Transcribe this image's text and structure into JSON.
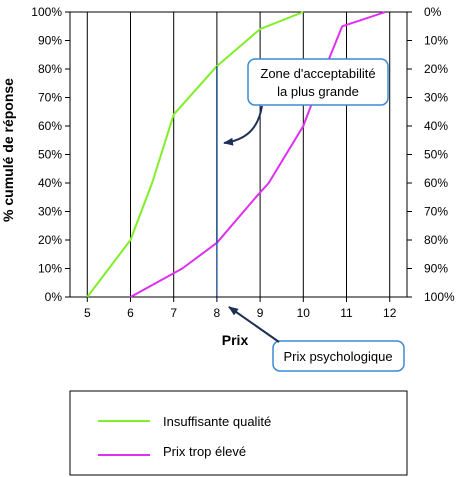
{
  "chart_data": {
    "type": "line",
    "xlabel": "Prix",
    "ylabel": "% cumulé de réponse",
    "x_ticks": [
      "5",
      "6",
      "7",
      "8",
      "9",
      "10",
      "11",
      "12"
    ],
    "xlim": [
      4.6,
      12.4
    ],
    "ylim": [
      0,
      100
    ],
    "y_ticks_left": [
      "0%",
      "10%",
      "20%",
      "30%",
      "40%",
      "50%",
      "60%",
      "70%",
      "80%",
      "90%",
      "100%"
    ],
    "y_ticks_right": [
      "100%",
      "90%",
      "80%",
      "70%",
      "60%",
      "50%",
      "40%",
      "30%",
      "20%",
      "10%",
      "0%"
    ],
    "grid": "vertical",
    "series": [
      {
        "name": "Insuffisante qualité",
        "color": "#80ee28",
        "points": [
          [
            5.0,
            0
          ],
          [
            6.0,
            20
          ],
          [
            6.5,
            40
          ],
          [
            7.0,
            64
          ],
          [
            8.0,
            81
          ],
          [
            9.0,
            94
          ],
          [
            10.0,
            100
          ]
        ]
      },
      {
        "name": "Prix trop élevé",
        "color": "#de30ee",
        "points": [
          [
            6.0,
            0
          ],
          [
            7.2,
            10
          ],
          [
            8.0,
            19
          ],
          [
            8.9,
            35
          ],
          [
            9.2,
            40
          ],
          [
            10.0,
            60
          ],
          [
            10.5,
            80
          ],
          [
            10.9,
            95
          ],
          [
            11.9,
            100
          ]
        ]
      }
    ],
    "annotations": [
      {
        "text_lines": [
          "Zone d'acceptabilité",
          "la plus grande"
        ],
        "x": 8
      },
      {
        "text_lines": [
          "Prix psychologique"
        ],
        "x": 8
      }
    ],
    "markers": {
      "solid_line": {
        "x": 8,
        "y_from": 19,
        "y_to": 81,
        "color": "#1c4f8c"
      },
      "dashed_line": {
        "x": 8,
        "y_from": 0,
        "y_to": 19,
        "color": "#2266cc"
      }
    },
    "legend": {
      "position": "bottom",
      "items": [
        "Insuffisante qualité",
        "Prix trop élevé"
      ]
    }
  }
}
